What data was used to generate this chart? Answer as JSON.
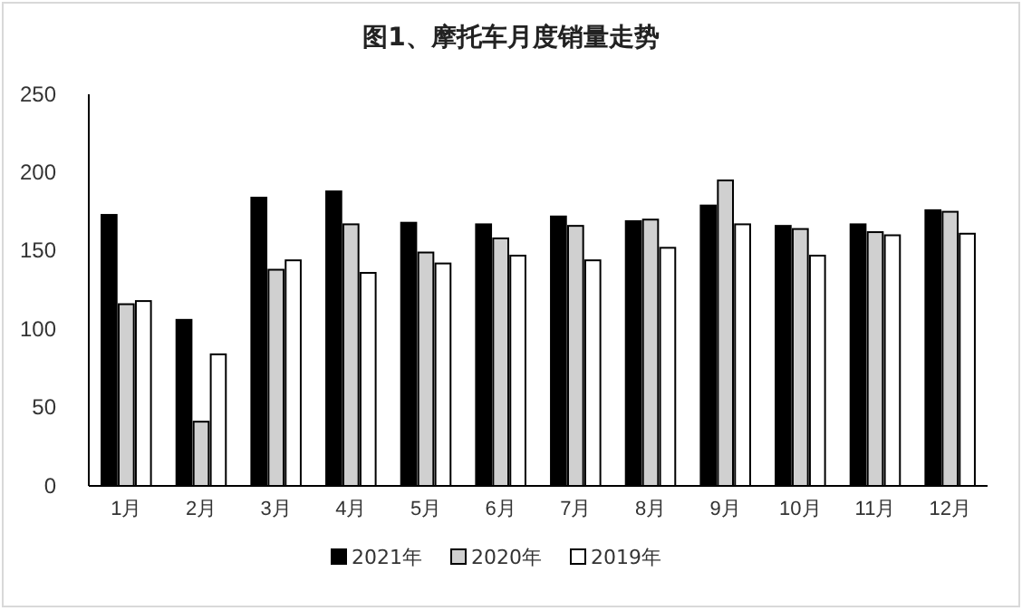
{
  "chart_data": {
    "type": "bar",
    "title": "图1、摩托车月度销量走势",
    "categories": [
      "1月",
      "2月",
      "3月",
      "4月",
      "5月",
      "6月",
      "7月",
      "8月",
      "9月",
      "10月",
      "11月",
      "12月"
    ],
    "series": [
      {
        "name": "2021年",
        "color": "#000000",
        "values": [
          173,
          106,
          184,
          188,
          168,
          167,
          172,
          169,
          179,
          166,
          167,
          176
        ]
      },
      {
        "name": "2020年",
        "color": "#d0d0d0",
        "values": [
          116,
          41,
          138,
          167,
          149,
          158,
          166,
          170,
          195,
          164,
          162,
          175
        ]
      },
      {
        "name": "2019年",
        "color": "#ffffff",
        "values": [
          118,
          84,
          144,
          136,
          142,
          147,
          144,
          152,
          167,
          147,
          160,
          161
        ]
      }
    ],
    "ylim": [
      0,
      250
    ],
    "yticks": [
      0,
      50,
      100,
      150,
      200,
      250
    ],
    "grid": false,
    "legend": "bottom"
  }
}
